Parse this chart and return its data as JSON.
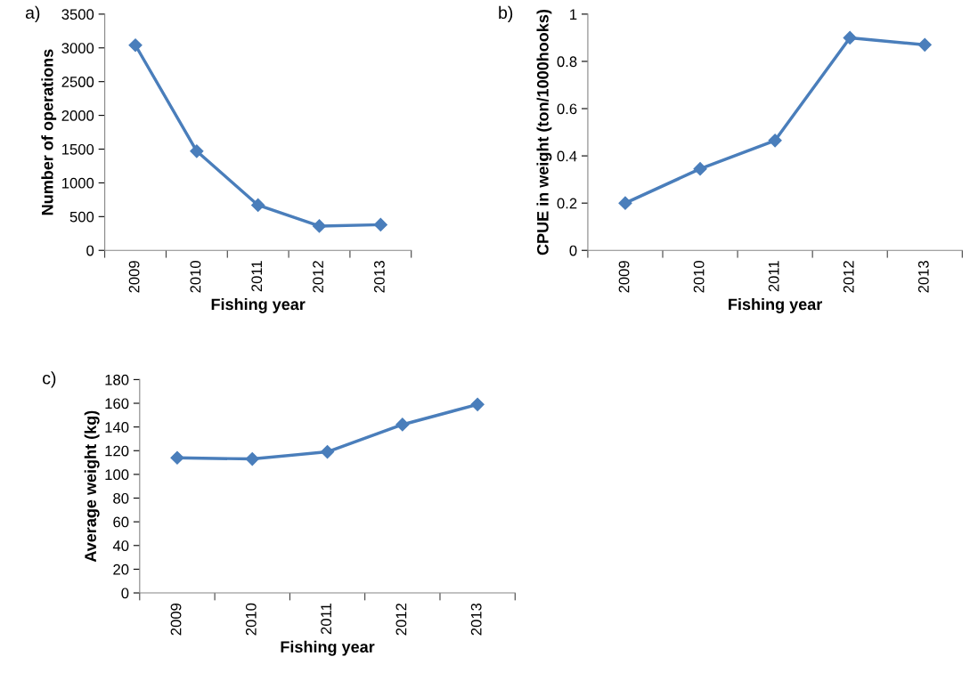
{
  "chart_data": [
    {
      "type": "line",
      "annotations": [
        "a)"
      ],
      "xlabel": "Fishing year",
      "ylabel": "Number of operations",
      "categories": [
        "2009",
        "2010",
        "2011",
        "2012",
        "2013"
      ],
      "series": [
        {
          "color": "#4a7ebb",
          "values": [
            3040,
            1470,
            670,
            360,
            380
          ]
        }
      ],
      "ylim": [
        0,
        3500
      ],
      "yticks": [
        0,
        500,
        1000,
        1500,
        2000,
        2500,
        3000,
        3500
      ],
      "grid": false,
      "legend": false,
      "marker": "diamond",
      "line_style": "solid"
    },
    {
      "type": "line",
      "annotations": [
        "b)"
      ],
      "xlabel": "Fishing year",
      "ylabel": "CPUE in weight (ton/1000hooks)",
      "categories": [
        "2009",
        "2010",
        "2011",
        "2012",
        "2013"
      ],
      "series": [
        {
          "color": "#4a7ebb",
          "values": [
            0.2,
            0.345,
            0.465,
            0.9,
            0.87
          ]
        }
      ],
      "ylim": [
        0,
        1
      ],
      "yticks": [
        0,
        0.2,
        0.4,
        0.6,
        0.8,
        1
      ],
      "grid": false,
      "legend": false,
      "marker": "diamond",
      "line_style": "solid"
    },
    {
      "type": "line",
      "annotations": [
        "c)"
      ],
      "xlabel": "Fishing year",
      "ylabel": "Average weight (kg)",
      "categories": [
        "2009",
        "2010",
        "2011",
        "2012",
        "2013"
      ],
      "series": [
        {
          "color": "#4a7ebb",
          "values": [
            114,
            113,
            119,
            142,
            159
          ]
        }
      ],
      "ylim": [
        0,
        180
      ],
      "yticks": [
        0,
        20,
        40,
        60,
        80,
        100,
        120,
        140,
        160,
        180
      ],
      "grid": false,
      "legend": false,
      "marker": "diamond",
      "line_style": "solid"
    }
  ]
}
